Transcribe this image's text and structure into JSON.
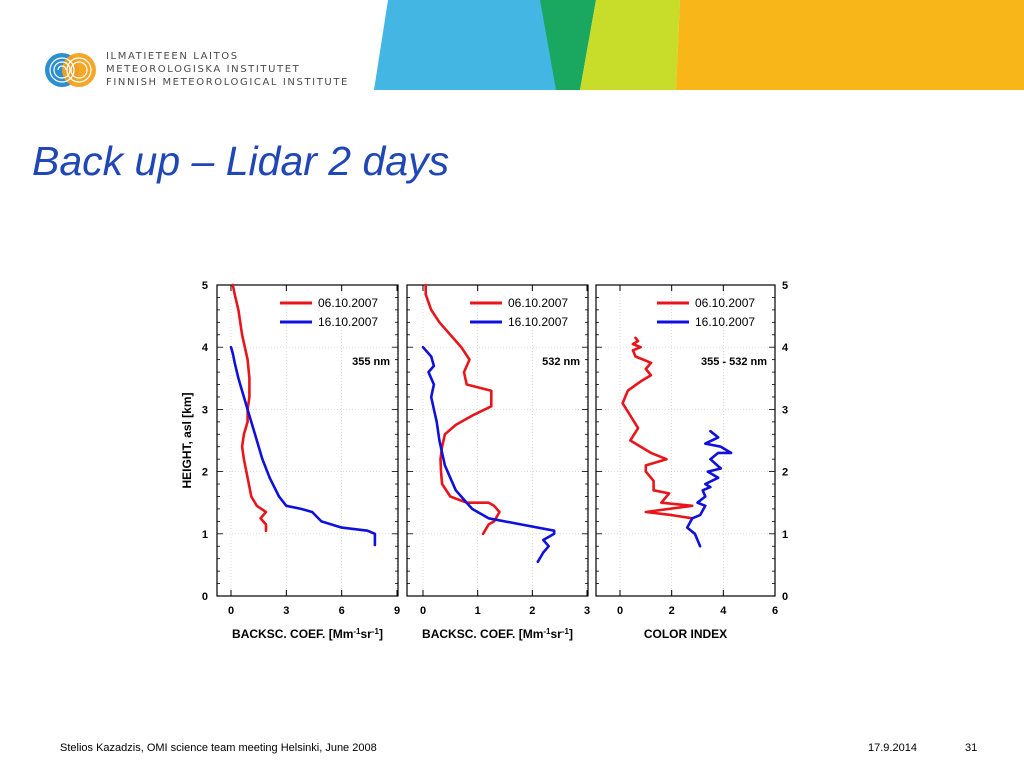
{
  "header": {
    "logo_lines": [
      "ILMATIETEEN LAITOS",
      "METEOROLOGISKA INSTITUTET",
      "FINNISH METEOROLOGICAL INSTITUTE"
    ],
    "band_colors": [
      "#44b6e3",
      "#1aa861",
      "#c8dc2a",
      "#f8b619"
    ]
  },
  "slide": {
    "title": "Back up – Lidar 2 days"
  },
  "footer": {
    "left": "Stelios Kazadzis, OMI science team meeting Helsinki, June 2008",
    "date": "17.9.2014",
    "page": "31"
  },
  "chart_data": [
    {
      "type": "line",
      "panel_label": "355 nm",
      "xlabel": "BACKSC. COEF. [Mm-1sr-1]",
      "ylabel": "HEIGHT, asl [km]",
      "xlim": [
        0,
        9
      ],
      "ylim": [
        0,
        5
      ],
      "xticks": [
        0,
        3,
        6,
        9
      ],
      "yticks": [
        0,
        1,
        2,
        3,
        4,
        5
      ],
      "legend": "top-right",
      "series": [
        {
          "name": "06.10.2007",
          "color": "#e8151b",
          "x": [
            1.9,
            1.9,
            1.6,
            1.9,
            1.4,
            1.1,
            0.9,
            0.7,
            0.6,
            0.7,
            0.9,
            0.9,
            1.0,
            1.0,
            0.9,
            0.6,
            0.4,
            0.2,
            0.1
          ],
          "y": [
            1.05,
            1.15,
            1.25,
            1.35,
            1.45,
            1.6,
            1.9,
            2.2,
            2.4,
            2.6,
            2.8,
            3.0,
            3.2,
            3.5,
            3.8,
            4.2,
            4.6,
            4.85,
            5.0
          ]
        },
        {
          "name": "16.10.2007",
          "color": "#1010dd",
          "x": [
            7.8,
            7.8,
            7.8,
            7.4,
            6.0,
            4.9,
            4.4,
            3.8,
            3.0,
            2.6,
            2.1,
            1.7,
            1.3,
            1.0,
            0.7,
            0.4,
            0.2,
            0.1,
            0.0
          ],
          "y": [
            0.82,
            0.9,
            1.0,
            1.05,
            1.1,
            1.2,
            1.35,
            1.4,
            1.45,
            1.6,
            1.9,
            2.2,
            2.6,
            2.9,
            3.2,
            3.5,
            3.75,
            3.9,
            4.0
          ]
        }
      ]
    },
    {
      "type": "line",
      "panel_label": "532 nm",
      "xlabel": "BACKSC. COEF. [Mm-1sr-1]",
      "xlim": [
        0,
        3
      ],
      "ylim": [
        0,
        5
      ],
      "xticks": [
        0,
        1,
        2,
        3
      ],
      "legend": "top-right",
      "series": [
        {
          "name": "06.10.2007",
          "color": "#e8151b",
          "x": [
            1.1,
            1.2,
            1.3,
            1.4,
            1.3,
            1.2,
            0.8,
            0.5,
            0.35,
            0.33,
            0.32,
            0.35,
            0.4,
            0.6,
            0.9,
            1.25,
            1.25,
            0.8,
            0.75,
            0.85,
            0.7,
            0.5,
            0.3,
            0.15,
            0.05,
            0.05
          ],
          "y": [
            1.0,
            1.15,
            1.2,
            1.35,
            1.45,
            1.5,
            1.5,
            1.6,
            1.8,
            2.0,
            2.2,
            2.4,
            2.6,
            2.75,
            2.9,
            3.05,
            3.3,
            3.4,
            3.6,
            3.8,
            4.0,
            4.2,
            4.4,
            4.6,
            4.85,
            5.0
          ]
        },
        {
          "name": "16.10.2007",
          "color": "#1010dd",
          "x": [
            2.1,
            2.2,
            2.3,
            2.2,
            2.4,
            2.4,
            1.8,
            1.2,
            0.9,
            0.8,
            0.6,
            0.5,
            0.4,
            0.35,
            0.3,
            0.25,
            0.2,
            0.15,
            0.2,
            0.15,
            0.1,
            0.2,
            0.15,
            0.0
          ],
          "y": [
            0.55,
            0.7,
            0.8,
            0.9,
            1.0,
            1.05,
            1.15,
            1.25,
            1.4,
            1.5,
            1.7,
            1.9,
            2.1,
            2.3,
            2.5,
            2.8,
            3.0,
            3.2,
            3.4,
            3.5,
            3.6,
            3.7,
            3.85,
            4.0
          ]
        }
      ]
    },
    {
      "type": "line",
      "panel_label": "355 - 532 nm",
      "xlabel": "COLOR INDEX",
      "xlim": [
        0,
        6
      ],
      "ylim": [
        0,
        5
      ],
      "xticks": [
        0,
        2,
        4,
        6
      ],
      "yticks": [
        0,
        1,
        2,
        3,
        4,
        5
      ],
      "legend": "top-right",
      "series": [
        {
          "name": "06.10.2007",
          "color": "#e8151b",
          "x": [
            2.8,
            2.0,
            1.0,
            2.8,
            1.6,
            1.9,
            1.3,
            1.3,
            1.0,
            1.0,
            1.8,
            1.2,
            0.8,
            0.4,
            0.7,
            0.4,
            0.1,
            0.3,
            0.8,
            1.2,
            1.0,
            1.2,
            0.6,
            0.5,
            0.8,
            0.5,
            0.7,
            0.6
          ],
          "y": [
            1.25,
            1.3,
            1.35,
            1.45,
            1.5,
            1.65,
            1.7,
            1.85,
            2.0,
            2.1,
            2.2,
            2.3,
            2.4,
            2.5,
            2.7,
            2.9,
            3.1,
            3.3,
            3.45,
            3.55,
            3.65,
            3.75,
            3.85,
            3.95,
            4.0,
            4.05,
            4.1,
            4.15
          ]
        },
        {
          "name": "16.10.2007",
          "color": "#1010dd",
          "x": [
            3.1,
            2.9,
            2.6,
            2.8,
            3.1,
            3.3,
            3.0,
            3.3,
            3.2,
            3.5,
            3.3,
            3.8,
            3.4,
            3.9,
            3.5,
            3.8,
            4.3,
            3.9,
            3.3,
            3.8,
            3.5
          ],
          "y": [
            0.8,
            1.0,
            1.1,
            1.25,
            1.3,
            1.45,
            1.5,
            1.6,
            1.7,
            1.75,
            1.8,
            1.9,
            2.0,
            2.05,
            2.2,
            2.3,
            2.3,
            2.4,
            2.45,
            2.55,
            2.65
          ]
        }
      ]
    }
  ]
}
